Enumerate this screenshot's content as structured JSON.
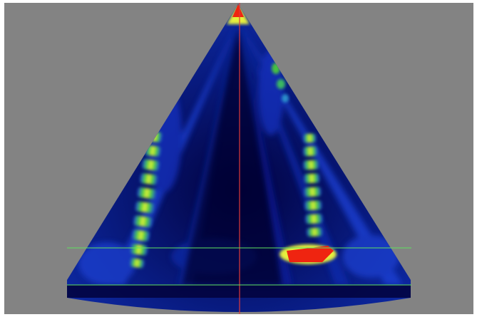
{
  "image": {
    "kind": "sector-scan-heatmap",
    "colors": {
      "frame": "#ffffff",
      "background": "#838383",
      "scan_dark": "#00003a",
      "scan_blue": "#0a1f9c",
      "scan_bright_blue": "#1f47e6",
      "band_green": "#4dd235",
      "band_yellow": "#e6ef3c",
      "hot_red": "#ef2410",
      "center_line": "#e03a3a",
      "marker_line": "#5fe35f"
    },
    "features": [
      "apex-hotspot",
      "left-bright-band",
      "right-bright-band",
      "right-red-reflector",
      "vertical-center-line",
      "horizontal-marker-lines"
    ]
  }
}
